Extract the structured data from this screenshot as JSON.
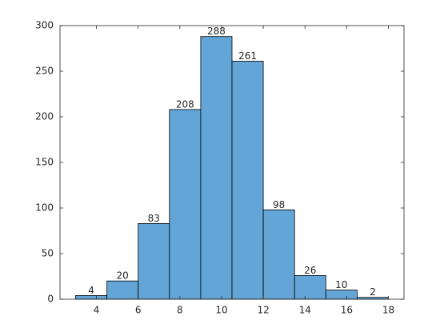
{
  "chart_data": {
    "type": "histogram",
    "bins": [
      3,
      4.5,
      6,
      7.5,
      9,
      10.5,
      12,
      13.5,
      15,
      16.5,
      18
    ],
    "values": [
      4,
      20,
      83,
      208,
      288,
      261,
      98,
      26,
      10,
      2
    ],
    "color": "#63a5d6",
    "xlim": [
      2.25,
      18.75
    ],
    "xticks": [
      4,
      6,
      8,
      10,
      12,
      14,
      16,
      18
    ],
    "ylim": [
      0,
      300
    ],
    "yticks": [
      0,
      50,
      100,
      150,
      200,
      250,
      300
    ]
  }
}
